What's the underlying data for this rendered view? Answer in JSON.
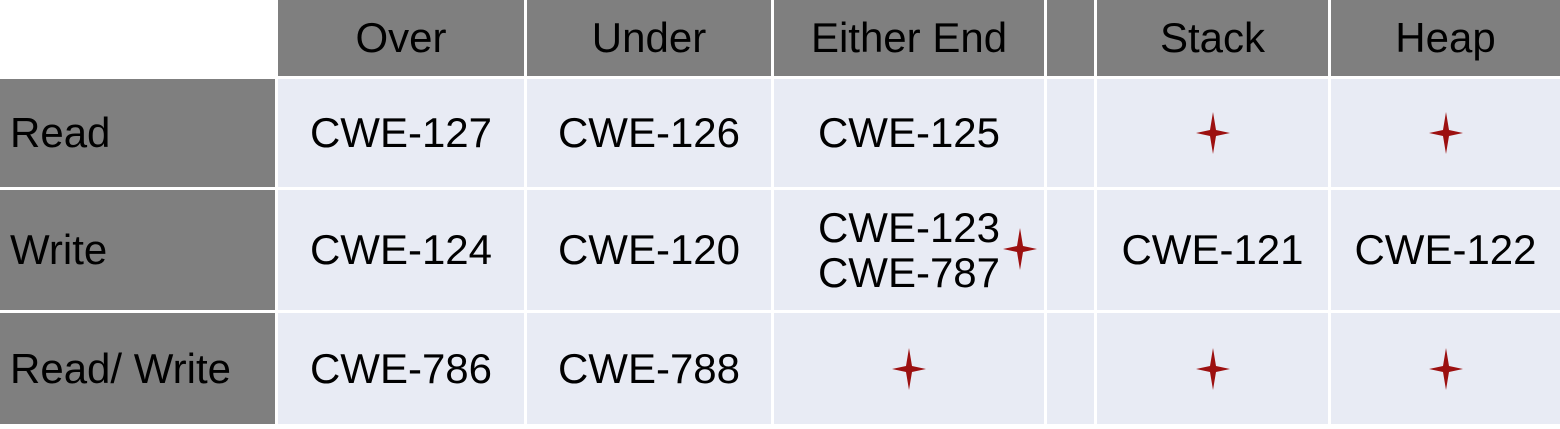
{
  "table": {
    "columns": [
      "Over",
      "Under",
      "Either End",
      "",
      "Stack",
      "Heap"
    ],
    "rows": [
      {
        "label": "Read",
        "cells": [
          "CWE-127",
          "CWE-126",
          "CWE-125",
          "",
          "",
          ""
        ]
      },
      {
        "label": "Write",
        "cells": [
          "CWE-124",
          "CWE-120",
          "CWE-123\nCWE-787",
          "",
          "CWE-121",
          "CWE-122"
        ]
      },
      {
        "label": "Read/ Write",
        "cells": [
          "CWE-786",
          "CWE-788",
          "",
          "",
          "",
          ""
        ]
      }
    ]
  },
  "marker": {
    "icon": "four-point-star-icon",
    "color": "#9c1010"
  },
  "colors": {
    "header": "#7f7f7f",
    "body": "#e8ebf4",
    "gridline": "#ffffff"
  }
}
